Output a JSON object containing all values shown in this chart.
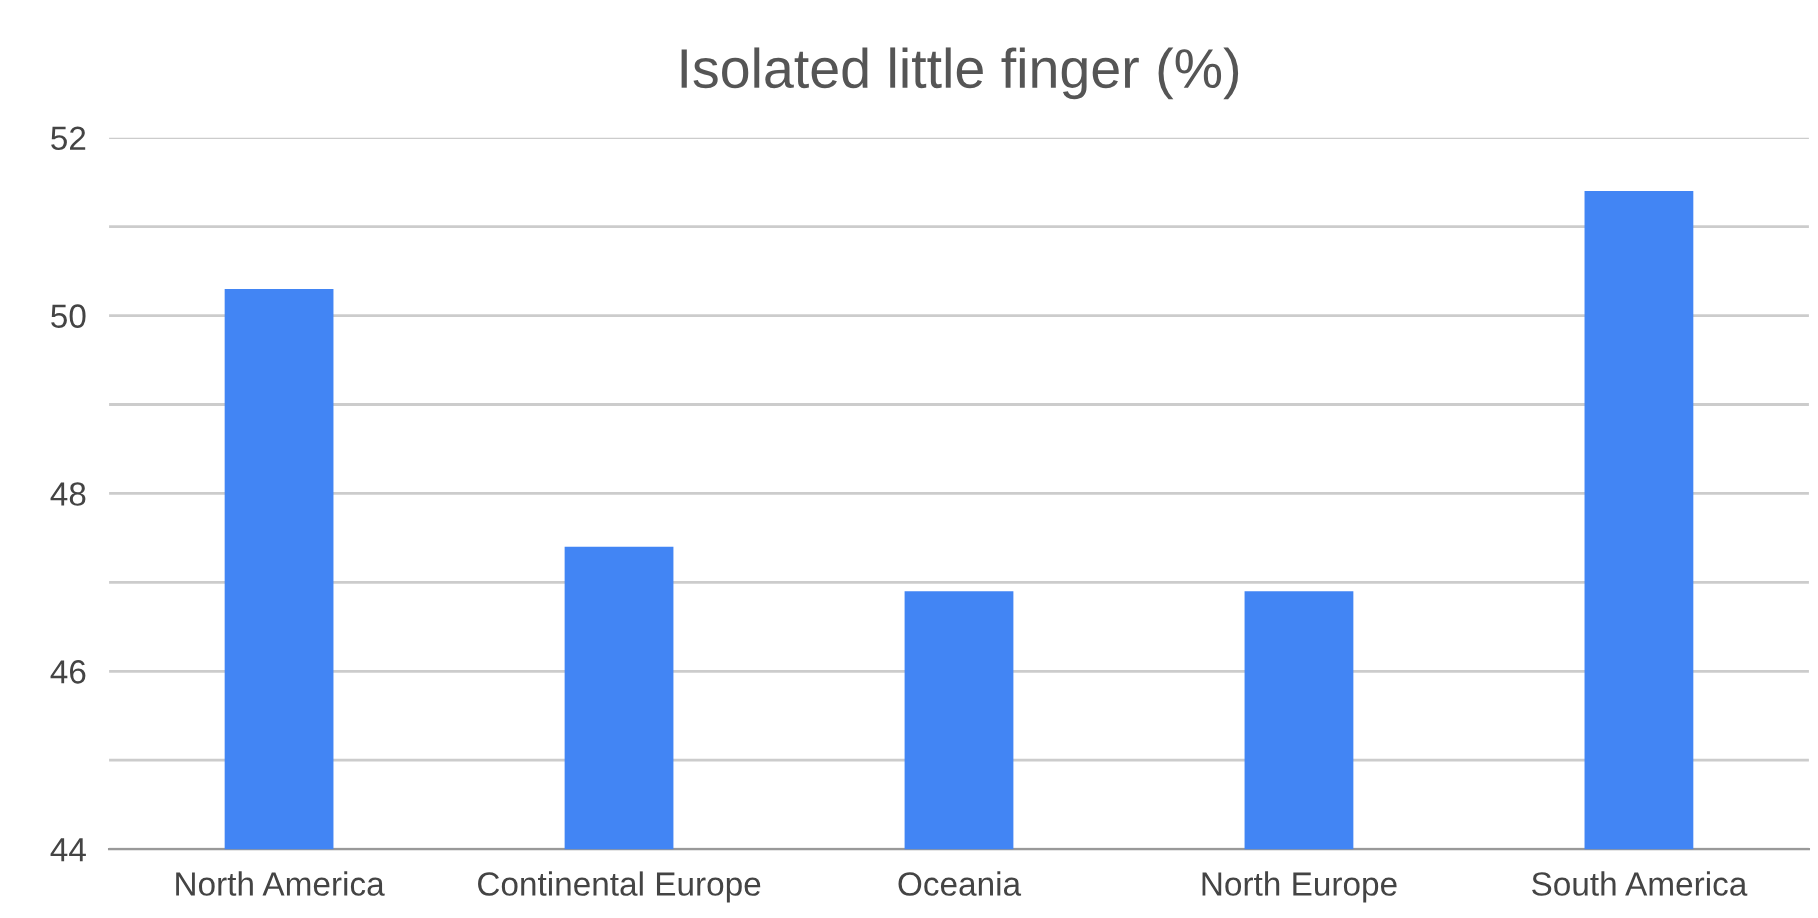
{
  "chart_data": {
    "type": "bar",
    "title": "Isolated little finger (%)",
    "categories": [
      "North America",
      "Continental Europe",
      "Oceania",
      "North Europe",
      "South America"
    ],
    "values": [
      50.3,
      47.4,
      46.9,
      46.9,
      51.4
    ],
    "color": "#4285f4",
    "ylim": [
      44,
      52
    ],
    "yticks": [
      44,
      {
        "value": 45,
        "label": null
      },
      46,
      {
        "value": 47,
        "label": null
      },
      48,
      {
        "value": 49,
        "label": null
      },
      50,
      {
        "value": 51,
        "label": null
      },
      52
    ],
    "grid": "y"
  }
}
